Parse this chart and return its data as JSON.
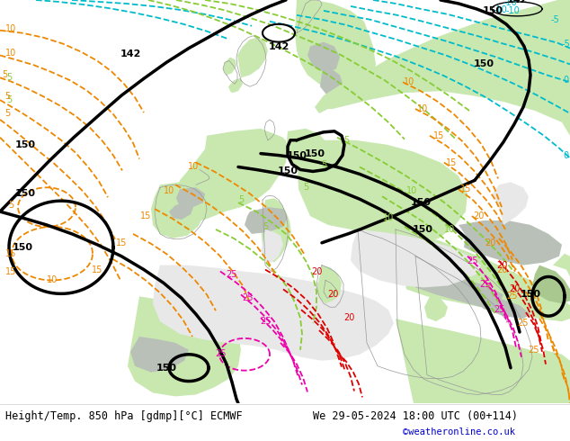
{
  "title_left": "Height/Temp. 850 hPa [gdmp][°C] ECMWF",
  "title_right": "We 29-05-2024 18:00 UTC (00+114)",
  "credit": "©weatheronline.co.uk",
  "bg_ocean_color": "#e8e8e8",
  "bg_land_green": "#c8e8b0",
  "bg_land_light": "#d8f0c0",
  "bg_gray": "#b8c0b8",
  "figsize": [
    6.34,
    4.9
  ],
  "dpi": 100,
  "bottom_bar_color": "#ffffff",
  "title_fontsize": 8.5,
  "credit_color": "#0000cc",
  "black_lw": 2.5,
  "cyan_color": "#00bbcc",
  "lime_color": "#88cc33",
  "orange_color": "#ee8800",
  "red_color": "#dd0000",
  "pink_color": "#ee00aa",
  "coast_color": "#999999",
  "coast_lw": 0.5
}
